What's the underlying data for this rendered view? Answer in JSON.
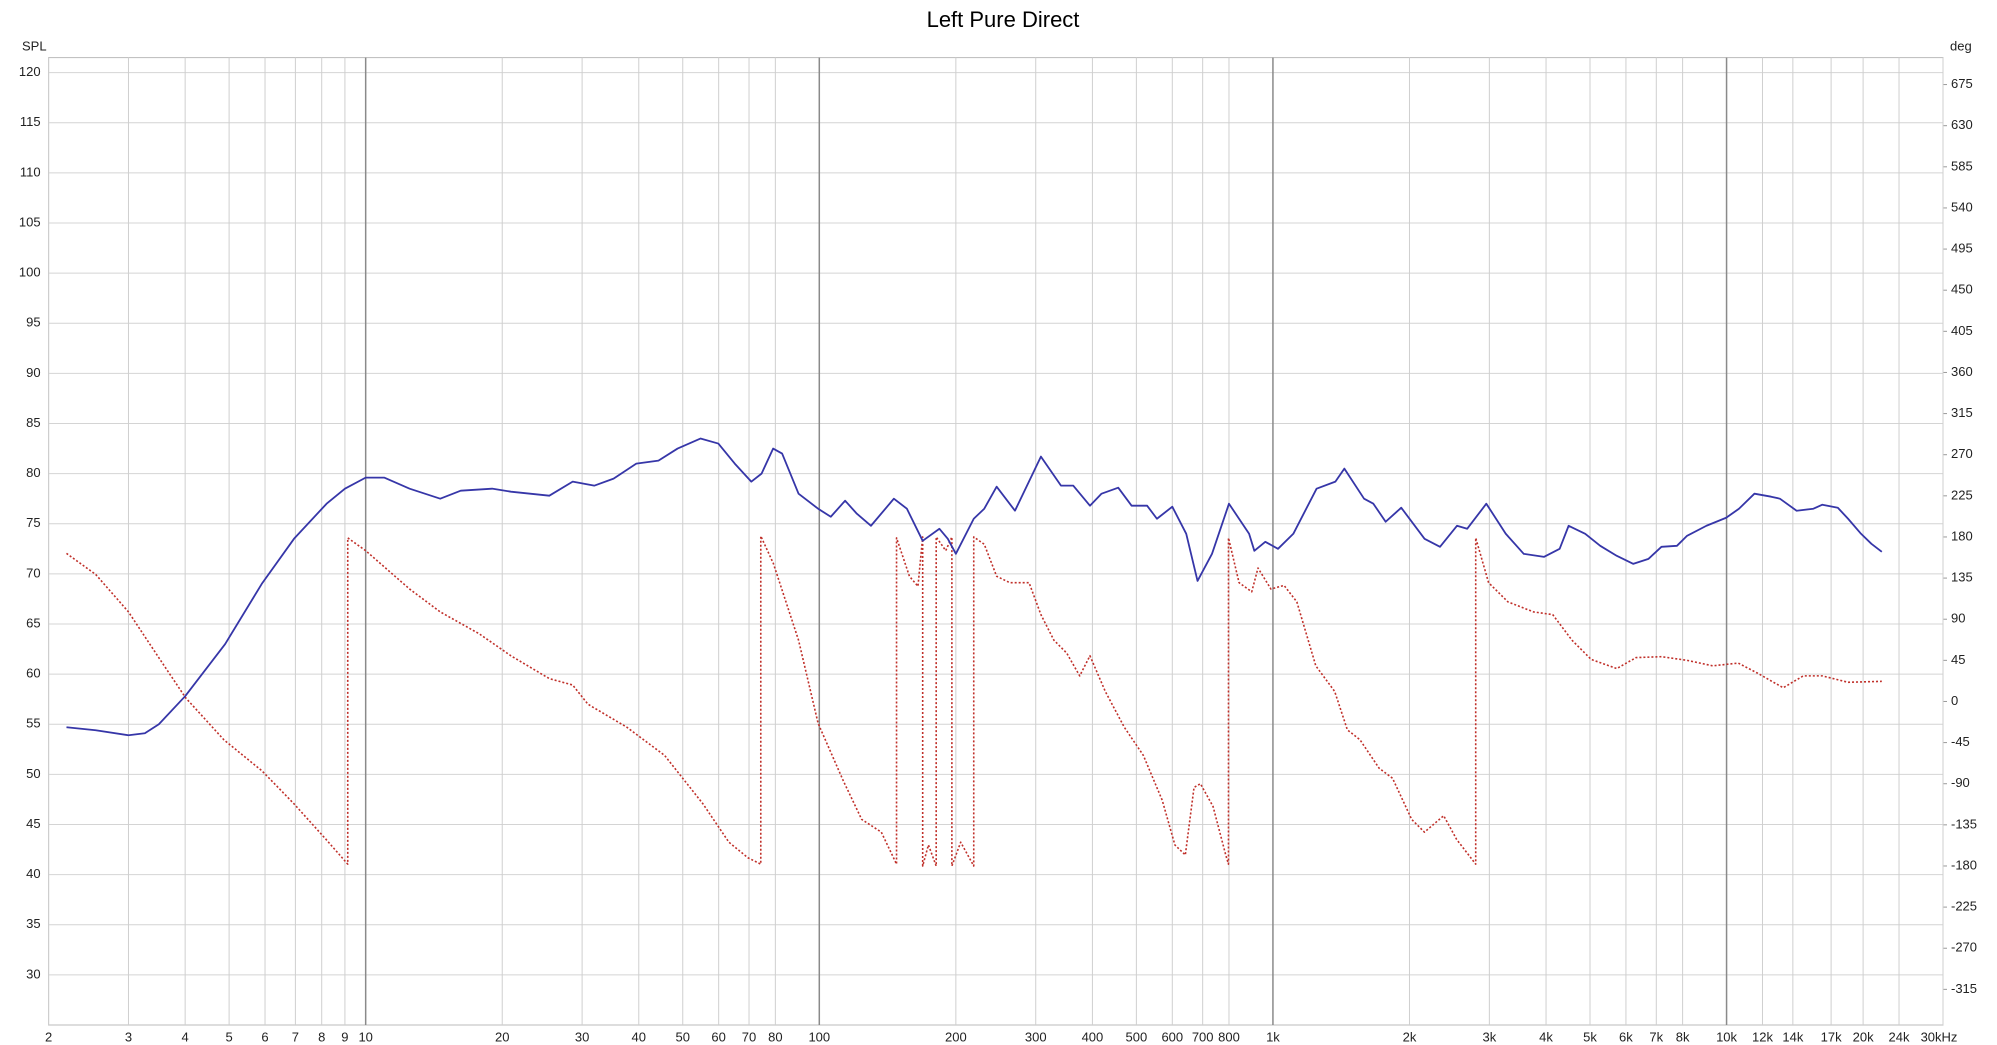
{
  "chart_data": {
    "type": "line",
    "title": "Left Pure Direct",
    "ylabel": "SPL",
    "y2label": "deg",
    "xscale": "log",
    "grid": true,
    "xlim": [
      2,
      30000
    ],
    "xticks": [
      2,
      3,
      4,
      5,
      6,
      7,
      8,
      9,
      10,
      20,
      30,
      40,
      50,
      60,
      70,
      80,
      100,
      200,
      300,
      400,
      500,
      600,
      700,
      800,
      {
        "value": 1000,
        "label": "1k"
      },
      {
        "value": 2000,
        "label": "2k"
      },
      {
        "value": 3000,
        "label": "3k"
      },
      {
        "value": 4000,
        "label": "4k"
      },
      {
        "value": 5000,
        "label": "5k"
      },
      {
        "value": 6000,
        "label": "6k"
      },
      {
        "value": 7000,
        "label": "7k"
      },
      {
        "value": 8000,
        "label": "8k"
      },
      {
        "value": 10000,
        "label": "10k"
      },
      {
        "value": 12000,
        "label": "12k"
      },
      {
        "value": 14000,
        "label": "14k"
      },
      {
        "value": 17000,
        "label": "17k"
      },
      {
        "value": 20000,
        "label": "20k"
      },
      {
        "value": 24000,
        "label": "24k"
      },
      {
        "value": 30000,
        "label": "30kHz"
      }
    ],
    "ylim": [
      25,
      121.5
    ],
    "yticks": [
      30,
      35,
      40,
      45,
      50,
      55,
      60,
      65,
      70,
      75,
      80,
      85,
      90,
      95,
      100,
      105,
      110,
      115,
      120
    ],
    "y2lim": [
      -354,
      704.5
    ],
    "y2ticks": [
      -315,
      -270,
      -225,
      -180,
      -135,
      -90,
      -45,
      0,
      45,
      90,
      135,
      180,
      225,
      270,
      315,
      360,
      405,
      450,
      495,
      540,
      585,
      630,
      675
    ],
    "series": [
      {
        "color": "#3636a8",
        "style": "solid",
        "x": [
          2.19,
          2.54,
          3.0,
          3.26,
          3.5,
          4.0,
          4.9,
          5.9,
          6.95,
          8.2,
          9.0,
          10,
          11,
          12.5,
          14.6,
          16.2,
          19,
          20.9,
          25.4,
          28.6,
          31.9,
          35.2,
          39.5,
          44.2,
          48.7,
          54.7,
          59.9,
          65.1,
          70.8,
          74.6,
          79.1,
          82.8,
          90,
          99.4,
          106,
          114,
          121,
          130,
          146,
          156,
          169,
          184,
          192,
          200,
          219,
          231,
          246,
          270,
          308,
          341,
          363,
          395,
          419,
          456,
          488,
          528,
          555,
          600,
          644,
          682,
          734,
          800,
          886,
          910,
          962,
          1026,
          1109,
          1248,
          1373,
          1437,
          1588,
          1665,
          1772,
          1918,
          2159,
          2335,
          2545,
          2680,
          2954,
          3260,
          3571,
          3961,
          4286,
          4486,
          4880,
          5266,
          5728,
          6224,
          6729,
          7186,
          7774,
          8184,
          9030,
          9980,
          10650,
          11520,
          12540,
          13110,
          14270,
          15540,
          16260,
          17590,
          18530,
          19790,
          20860,
          21990
        ],
        "values": [
          54.7,
          54.4,
          53.9,
          54.1,
          55,
          57.8,
          63,
          69,
          73.5,
          77,
          78.5,
          79.6,
          79.6,
          78.5,
          77.5,
          78.3,
          78.5,
          78.2,
          77.8,
          79.2,
          78.8,
          79.5,
          81,
          81.3,
          82.5,
          83.5,
          83,
          81,
          79.2,
          80,
          82.5,
          82,
          78,
          76.5,
          75.7,
          77.3,
          76,
          74.8,
          77.5,
          76.5,
          73.3,
          74.5,
          73.5,
          72,
          75.5,
          76.5,
          78.7,
          76.3,
          81.7,
          78.8,
          78.8,
          76.8,
          78,
          78.6,
          76.8,
          76.8,
          75.5,
          76.7,
          74,
          69.3,
          72,
          77,
          74,
          72.3,
          73.2,
          72.5,
          74,
          78.5,
          79.2,
          80.5,
          77.5,
          77,
          75.2,
          76.6,
          73.5,
          72.7,
          74.8,
          74.5,
          77,
          74,
          72,
          71.7,
          72.5,
          74.8,
          74,
          72.8,
          71.8,
          71,
          71.5,
          72.7,
          72.8,
          73.8,
          74.8,
          75.6,
          76.5,
          78,
          77.7,
          77.5,
          76.3,
          76.5,
          76.9,
          76.6,
          75.5,
          74,
          73,
          72.2
        ]
      },
      {
        "color": "#c0302a",
        "style": "dotted",
        "axis": "y2",
        "x": [
          2.19,
          2.54,
          3.0,
          3.52,
          4.01,
          4.87,
          5.91,
          6.95,
          8.18,
          9.13,
          9.13,
          10,
          12.5,
          14.6,
          17.8,
          20.9,
          25.4,
          28.6,
          30.9,
          37.6,
          45.6,
          55.4,
          63.2,
          69.6,
          74.3,
          74.3,
          79.2,
          90,
          99.4,
          113,
          124,
          137,
          148,
          148,
          158,
          165,
          169,
          169,
          174,
          181,
          181,
          190,
          196,
          196,
          205,
          219,
          219,
          231,
          246,
          263,
          290,
          308,
          329,
          351,
          375,
          395,
          427,
          470,
          518,
          570,
          608,
          641,
          670,
          692,
          738,
          787,
          798,
          798,
          842,
          898,
          927,
          990,
          1058,
          1129,
          1243,
          1368,
          1459,
          1556,
          1714,
          1835,
          2022,
          2158,
          2379,
          2541,
          2799,
          2799,
          2988,
          3296,
          3754,
          4138,
          4563,
          5030,
          5728,
          6315,
          7186,
          8184,
          9320,
          10610,
          11700,
          13330,
          14760,
          16260,
          18520,
          21990
        ],
        "values": [
          162,
          139,
          98,
          46,
          4,
          -42,
          -76,
          -112,
          -151,
          -178,
          179,
          165,
          123,
          98,
          74,
          50,
          25,
          18,
          -3,
          -28,
          -59,
          -112,
          -154,
          -171,
          -178,
          181,
          151,
          67,
          -24,
          -87,
          -129,
          -143,
          -178,
          179,
          137,
          126,
          180,
          -180,
          -157,
          -180,
          180,
          165,
          180,
          -180,
          -154,
          -180,
          180,
          172,
          137,
          130,
          130,
          95,
          67,
          53,
          28,
          50,
          11,
          -28,
          -59,
          -108,
          -157,
          -168,
          -94,
          -90,
          -115,
          -168,
          -178,
          179,
          130,
          120,
          146,
          123,
          127,
          109,
          39,
          11,
          -31,
          -42,
          -73,
          -84,
          -129,
          -143,
          -125,
          -151,
          -178,
          179,
          130,
          109,
          98,
          95,
          67,
          46,
          36,
          48,
          49,
          45,
          39,
          42,
          31,
          15,
          28,
          28,
          21,
          22
        ]
      }
    ]
  }
}
